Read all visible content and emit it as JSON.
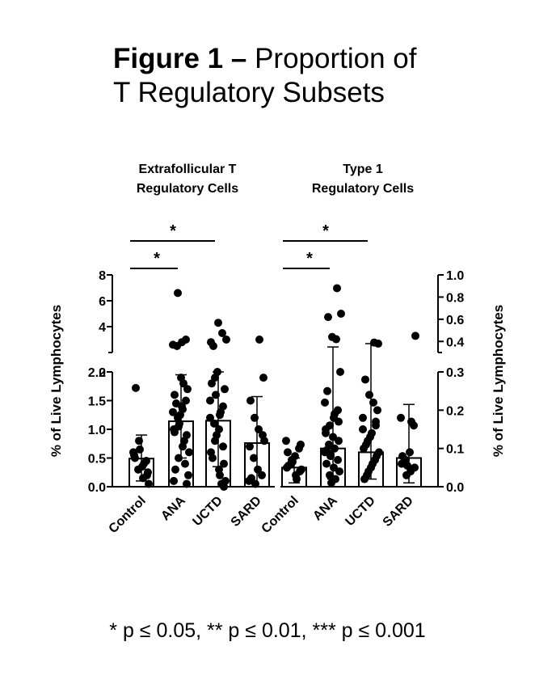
{
  "figure": {
    "title_bold": "Figure 1 –",
    "title_rest_1": "Proportion of",
    "title_line_2": "T Regulatory Subsets",
    "footnote": "* p ≤ 0.05, ** p ≤ 0.01, *** p ≤ 0.001"
  },
  "chart_data": [
    {
      "type": "bar",
      "title_lines": [
        "Extrafollicular T",
        "Regulatory Cells"
      ],
      "ylabel": "% of Live Lymphocytes",
      "categories": [
        "Control",
        "ANA",
        "UCTD",
        "SARD"
      ],
      "scale": "broken",
      "ylim_lower": [
        0,
        2.0
      ],
      "lower_ticks": [
        "0.0",
        "0.5",
        "1.0",
        "1.5",
        "2.0"
      ],
      "ylim_upper": [
        2,
        8
      ],
      "upper_ticks": [
        "2",
        "4",
        "6",
        "8"
      ],
      "bars": [
        0.49,
        1.14,
        1.15,
        0.76
      ],
      "error_upper": [
        0.9,
        1.95,
        2.0,
        1.57
      ],
      "error_lower": [
        0.1,
        0.5,
        0.35,
        0.0
      ],
      "points": [
        [
          0.6,
          0.45,
          0.35,
          0.3,
          0.55,
          0.2,
          0.15,
          0.8,
          0.5,
          0.25,
          0.4,
          0.65,
          1.72,
          0.05
        ],
        [
          1.3,
          1.5,
          1.4,
          1.2,
          1.0,
          0.9,
          0.7,
          0.5,
          1.6,
          1.7,
          1.8,
          1.1,
          0.3,
          0.2,
          0.8,
          1.25,
          1.45,
          0.6,
          0.4,
          1.9,
          2.5,
          2.6,
          3.0,
          2.8,
          6.6,
          0.1,
          0.05,
          1.35,
          1.05,
          0.95
        ],
        [
          1.2,
          1.4,
          1.0,
          0.8,
          0.6,
          0.4,
          0.2,
          1.6,
          1.8,
          1.7,
          1.3,
          0.9,
          0.5,
          0.1,
          0.05,
          2.0,
          2.5,
          3.0,
          3.5,
          4.3,
          1.1,
          1.5,
          0.7,
          0.3,
          1.9,
          2.8,
          0.0,
          1.25
        ],
        [
          0.1,
          0.2,
          0.3,
          0.5,
          0.7,
          0.9,
          1.0,
          1.2,
          1.5,
          1.9,
          3.0,
          0.05,
          0.15,
          0.8
        ]
      ],
      "significance": [
        {
          "from": "Control",
          "to": "ANA",
          "label": "*"
        },
        {
          "from": "Control",
          "to": "UCTD",
          "label": "*"
        }
      ]
    },
    {
      "type": "bar",
      "title_lines": [
        "Type 1",
        "Regulatory Cells"
      ],
      "ylabel": "% of Live Lymphocytes",
      "categories": [
        "Control",
        "ANA",
        "UCTD",
        "SARD"
      ],
      "scale": "broken",
      "ylim_lower": [
        0,
        0.3
      ],
      "lower_ticks": [
        "0.0",
        "0.1",
        "0.2",
        "0.3"
      ],
      "ylim_upper": [
        0.3,
        1.0
      ],
      "upper_ticks": [
        "0.4",
        "0.6",
        "0.8",
        "1.0"
      ],
      "bars": [
        0.05,
        0.1,
        0.09,
        0.075
      ],
      "error_upper": [
        0.075,
        0.35,
        0.38,
        0.215
      ],
      "error_lower": [
        0.01,
        0.02,
        0.02,
        0.01
      ],
      "points": [
        [
          0.12,
          0.1,
          0.08,
          0.06,
          0.05,
          0.04,
          0.03,
          0.07,
          0.09,
          0.11,
          0.02,
          0.065,
          0.055,
          0.045
        ],
        [
          0.22,
          0.2,
          0.18,
          0.16,
          0.14,
          0.12,
          0.1,
          0.08,
          0.06,
          0.04,
          0.02,
          0.01,
          0.25,
          0.3,
          0.42,
          0.44,
          0.62,
          0.65,
          0.88,
          0.13,
          0.11,
          0.09,
          0.07,
          0.05,
          0.03,
          0.15,
          0.17,
          0.19,
          0.085,
          0.095
        ],
        [
          0.18,
          0.16,
          0.14,
          0.12,
          0.1,
          0.08,
          0.06,
          0.04,
          0.02,
          0.2,
          0.22,
          0.24,
          0.28,
          0.38,
          0.39,
          0.13,
          0.11,
          0.09,
          0.07,
          0.05,
          0.03,
          0.15,
          0.17
        ],
        [
          0.18,
          0.16,
          0.09,
          0.07,
          0.06,
          0.05,
          0.04,
          0.03,
          0.08,
          0.45,
          0.17,
          0.055
        ]
      ],
      "significance": [
        {
          "from": "Control",
          "to": "ANA",
          "label": "*"
        },
        {
          "from": "Control",
          "to": "UCTD",
          "label": "*"
        }
      ]
    }
  ]
}
